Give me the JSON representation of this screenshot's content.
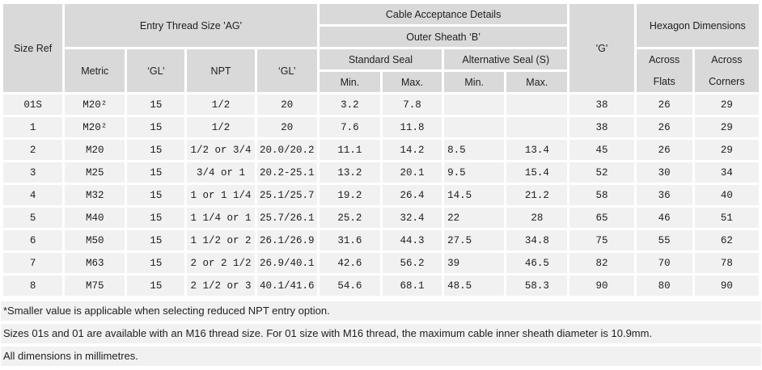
{
  "header": {
    "size_ref": "Size Ref",
    "entry_thread_size": "Entry Thread Size 'AG'",
    "metric": "Metric",
    "gl_metric": "‘GL’",
    "npt": "NPT",
    "gl_npt": "‘GL’",
    "cable_acceptance": "Cable Acceptance Details",
    "outer_sheath": "Outer Sheath ‘B’",
    "standard_seal": "Standard Seal",
    "alternative_seal": "Alternative Seal (S)",
    "std_min": "Min.",
    "std_max": "Max.",
    "alt_min": "Min.",
    "alt_max": "Max.",
    "g": "'G'",
    "hexagon_dimensions": "Hexagon Dimensions",
    "across_flats": [
      "Across",
      "Flats"
    ],
    "across_corners": [
      "Across",
      "Corners"
    ]
  },
  "rows": [
    [
      "01S",
      "M20²",
      "15",
      "1/2",
      "20",
      "3.2",
      "7.8",
      "",
      "",
      "38",
      "26",
      "29"
    ],
    [
      "1",
      "M20²",
      "15",
      "1/2",
      "20",
      "7.6",
      "11.8",
      "",
      "",
      "38",
      "26",
      "29"
    ],
    [
      "2",
      "M20",
      "15",
      "1/2 or 3/4",
      "20.0/20.2",
      "11.1",
      "14.2",
      "8.5",
      "13.4",
      "45",
      "26",
      "29"
    ],
    [
      "3",
      "M25",
      "15",
      "3/4 or 1",
      "20.2-25.1",
      "13.2",
      "20.1",
      "9.5",
      "15.4",
      "52",
      "30",
      "34"
    ],
    [
      "4",
      "M32",
      "15",
      "1 or 1 1/4",
      "25.1/25.7",
      "19.2",
      "26.4",
      "14.5",
      "21.2",
      "58",
      "36",
      "40"
    ],
    [
      "5",
      "M40",
      "15",
      "1 1/4 or 1",
      "25.7/26.1",
      "25.2",
      "32.4",
      "22",
      "28",
      "65",
      "46",
      "51"
    ],
    [
      "6",
      "M50",
      "15",
      "1 1/2 or 2",
      "26.1/26.9",
      "31.6",
      "44.3",
      "27.5",
      "34.8",
      "75",
      "55",
      "62"
    ],
    [
      "7",
      "M63",
      "15",
      "2 or 2 1/2",
      "26.9/40.1",
      "42.6",
      "56.2",
      "39",
      "46.5",
      "82",
      "70",
      "78"
    ],
    [
      "8",
      "M75",
      "15",
      "2 1/2 or 3",
      "40.1/41.6",
      "54.6",
      "68.1",
      "48.5",
      "58.3",
      "90",
      "80",
      "90"
    ]
  ],
  "notes": [
    "*Smaller value is applicable when selecting reduced NPT entry option.",
    "Sizes 01s and 01 are available with an M16 thread size. For 01 size with M16 thread, the maximum cable inner sheath diameter is 10.9mm.",
    "All dimensions in millimetres."
  ],
  "colors": {
    "header_bg": "#d9d9d9",
    "cell_bg": "#f1f1f1",
    "text": "#1f1f1f"
  }
}
